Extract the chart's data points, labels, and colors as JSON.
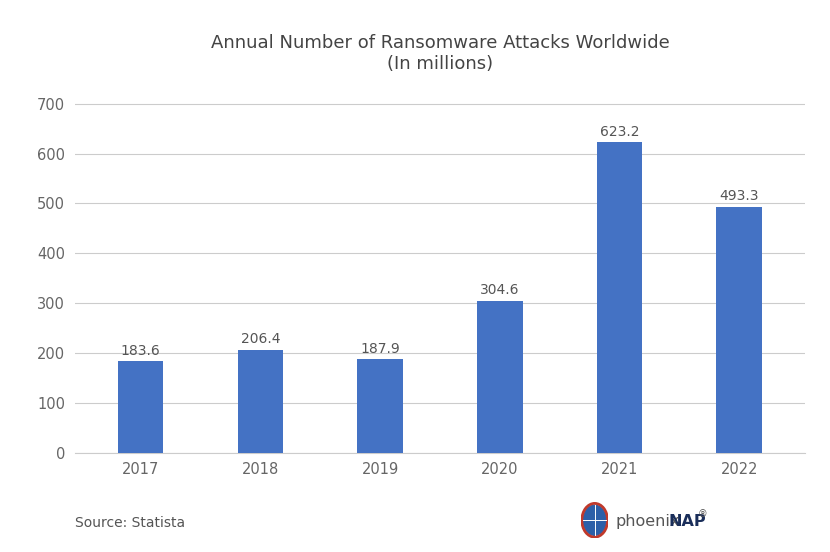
{
  "title_line1": "Annual Number of Ransomware Attacks Worldwide",
  "title_line2": "(In millions)",
  "categories": [
    "2017",
    "2018",
    "2019",
    "2020",
    "2021",
    "2022"
  ],
  "values": [
    183.6,
    206.4,
    187.9,
    304.6,
    623.2,
    493.3
  ],
  "bar_color": "#4472C4",
  "ylim": [
    0,
    720
  ],
  "yticks": [
    0,
    100,
    200,
    300,
    400,
    500,
    600,
    700
  ],
  "source_text": "Source: Statista",
  "background_color": "#ffffff",
  "title_fontsize": 13,
  "tick_fontsize": 10.5,
  "source_fontsize": 10,
  "bar_label_fontsize": 10,
  "grid_color": "#cccccc",
  "bar_width": 0.38
}
